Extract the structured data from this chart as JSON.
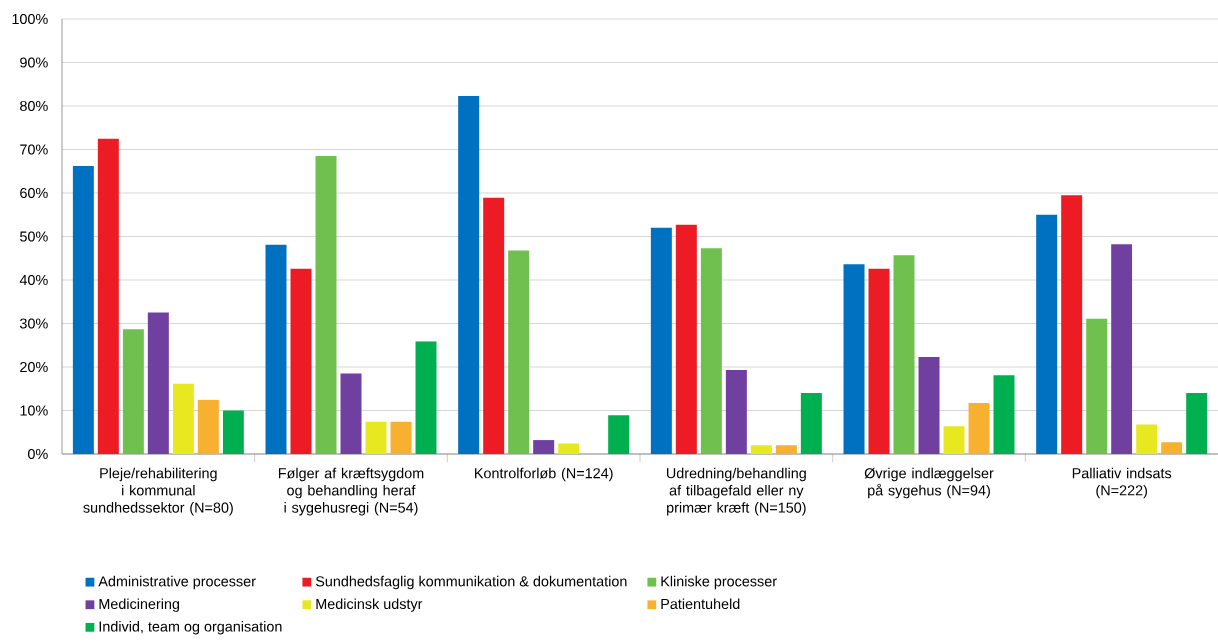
{
  "chart_data": {
    "type": "bar",
    "categories": [
      "Pleje/rehabilitering i kommunal sundhedssektor (N=80)",
      "Følger af kræftsygdom og behandling heraf i sygehusregi (N=54)",
      "Kontrolforløb (N=124)",
      "Udredning/behandling af tilbagefald eller ny primær kræft (N=150)",
      "Øvrige indlæggelser på sygehus (N=94)",
      "Palliativ indsats (N=222)"
    ],
    "series": [
      {
        "name": "Administrative processer",
        "color": "#0070c0",
        "values": [
          66.2,
          48.1,
          82.3,
          52,
          43.6,
          55
        ]
      },
      {
        "name": "Sundhedsfaglig kommunikation & dokumentation",
        "color": "#ed1c24",
        "values": [
          72.5,
          42.6,
          58.9,
          52.7,
          42.6,
          59.5
        ]
      },
      {
        "name": "Kliniske processer",
        "color": "#70c050",
        "values": [
          28.7,
          68.5,
          46.8,
          47.3,
          45.7,
          31.1
        ]
      },
      {
        "name": "Medicinering",
        "color": "#7040a0",
        "values": [
          32.5,
          18.5,
          3.2,
          19.3,
          22.3,
          48.2
        ]
      },
      {
        "name": "Medicinsk udstyr",
        "color": "#e8e820",
        "values": [
          16.2,
          7.4,
          2.4,
          2,
          6.4,
          6.8
        ]
      },
      {
        "name": "Patientuheld",
        "color": "#f8b030",
        "values": [
          12.5,
          7.4,
          0,
          2,
          11.7,
          2.7
        ]
      },
      {
        "name": "Individ, team og organisation",
        "color": "#00b050",
        "values": [
          10,
          25.9,
          8.9,
          14,
          18.1,
          14
        ]
      }
    ],
    "ylim": [
      0,
      100
    ],
    "yticks": [
      {
        "value": 0,
        "label": "0%"
      },
      {
        "value": 10,
        "label": "10%"
      },
      {
        "value": 20,
        "label": "20%"
      },
      {
        "value": 30,
        "label": "30%"
      },
      {
        "value": 40,
        "label": "40%"
      },
      {
        "value": 50,
        "label": "50%"
      },
      {
        "value": 60,
        "label": "60%"
      },
      {
        "value": 70,
        "label": "70%"
      },
      {
        "value": 80,
        "label": "80%"
      },
      {
        "value": 90,
        "label": "90%"
      },
      {
        "value": 100,
        "label": "100%"
      }
    ],
    "grid": "y",
    "legend": "bottom"
  }
}
